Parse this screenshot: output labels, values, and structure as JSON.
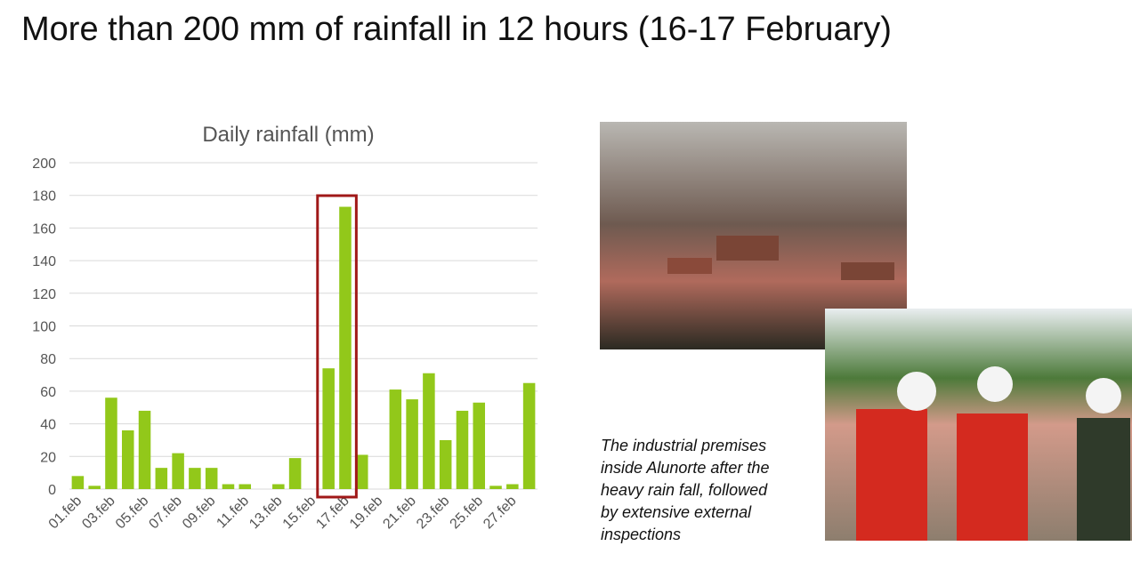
{
  "title": "More than 200 mm of rainfall in 12 hours (16-17 February)",
  "caption": [
    "The industrial premises",
    "inside Alunorte after the",
    "heavy rain fall, followed",
    "by extensive external",
    "inspections"
  ],
  "chart_data": {
    "type": "bar",
    "title": "Daily rainfall (mm)",
    "categories": [
      "01.feb",
      null,
      "03.feb",
      null,
      "05.feb",
      null,
      "07.feb",
      null,
      "09.feb",
      null,
      "11.feb",
      null,
      "13.feb",
      null,
      "15.feb",
      null,
      "17.feb",
      null,
      "19.feb",
      null,
      "21.feb",
      null,
      "23.feb",
      null,
      "25.feb",
      null,
      "27.feb",
      null
    ],
    "values": [
      8,
      2,
      56,
      36,
      48,
      13,
      22,
      13,
      13,
      3,
      3,
      0,
      3,
      19,
      0,
      74,
      173,
      21,
      0,
      61,
      55,
      71,
      30,
      48,
      53,
      2,
      3,
      65
    ],
    "color": "#92c81a",
    "ylim": [
      0,
      200
    ],
    "yticks": [
      0,
      20,
      40,
      60,
      80,
      100,
      120,
      140,
      160,
      180,
      200
    ],
    "grid": true
  }
}
